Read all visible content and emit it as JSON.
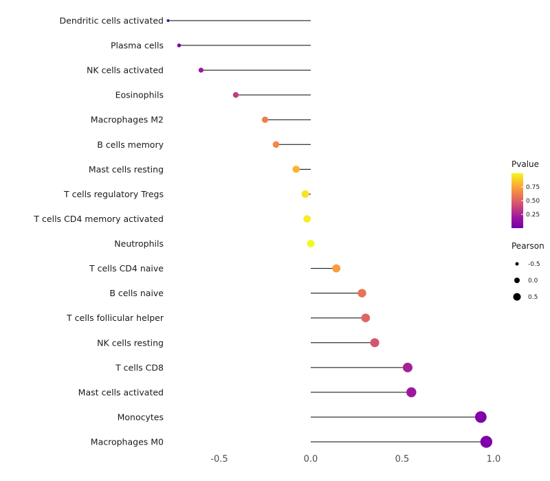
{
  "chart_data": {
    "type": "lollipop",
    "title": "",
    "xlabel": "",
    "ylabel": "",
    "xlim": [
      -0.85,
      1.05
    ],
    "x_ticks": [
      -0.5,
      0.0,
      0.5,
      1.0
    ],
    "x_tick_labels": [
      "-0.5",
      "0.0",
      "0.5",
      "1.0"
    ],
    "grid": "off",
    "legend": {
      "position": "right",
      "color_title": "Pvalue",
      "color_ticks": [
        "0.75",
        "0.50",
        "0.25"
      ],
      "color_gradient_top_to_bottom": [
        "#f0f921",
        "#fdb32f",
        "#ed7953",
        "#cc4778",
        "#9c179e",
        "#7301a8"
      ],
      "size_title": "Pearson",
      "size_ticks": [
        {
          "label": "-0.5",
          "r": 2.5
        },
        {
          "label": "0.0",
          "r": 4.0
        },
        {
          "label": "0.5",
          "r": 5.5
        }
      ]
    },
    "points": [
      {
        "label": "Dendritic cells activated",
        "pearson": -0.78,
        "pvalue": 0.03,
        "color": "#4903a0",
        "r": 2.0
      },
      {
        "label": "Plasma cells",
        "pearson": -0.72,
        "pvalue": 0.07,
        "color": "#7701a8",
        "r": 2.8
      },
      {
        "label": "NK cells activated",
        "pearson": -0.6,
        "pvalue": 0.14,
        "color": "#9c179e",
        "r": 3.6
      },
      {
        "label": "Eosinophils",
        "pearson": -0.41,
        "pvalue": 0.3,
        "color": "#c13b82",
        "r": 4.2
      },
      {
        "label": "Macrophages M2",
        "pearson": -0.25,
        "pvalue": 0.55,
        "color": "#ef7e50",
        "r": 4.6
      },
      {
        "label": "B cells memory",
        "pearson": -0.19,
        "pvalue": 0.6,
        "color": "#f48849",
        "r": 4.8
      },
      {
        "label": "Mast cells resting",
        "pearson": -0.08,
        "pvalue": 0.78,
        "color": "#fdb22f",
        "r": 5.2
      },
      {
        "label": "T cells regulatory  Tregs",
        "pearson": -0.03,
        "pvalue": 0.9,
        "color": "#f7e225",
        "r": 5.4
      },
      {
        "label": "T cells CD4 memory activated",
        "pearson": -0.02,
        "pvalue": 0.93,
        "color": "#f4ed27",
        "r": 5.4
      },
      {
        "label": "Neutrophils",
        "pearson": 0.0,
        "pvalue": 0.98,
        "color": "#f0f921",
        "r": 5.5
      },
      {
        "label": "T cells CD4 naive",
        "pearson": 0.14,
        "pvalue": 0.66,
        "color": "#fa9b3d",
        "r": 5.9
      },
      {
        "label": "B cells naive",
        "pearson": 0.28,
        "pvalue": 0.5,
        "color": "#e97257",
        "r": 6.2
      },
      {
        "label": "T cells follicular helper",
        "pearson": 0.3,
        "pvalue": 0.44,
        "color": "#e26561",
        "r": 6.3
      },
      {
        "label": "NK cells resting",
        "pearson": 0.35,
        "pvalue": 0.38,
        "color": "#d5536f",
        "r": 6.5
      },
      {
        "label": "T cells CD8",
        "pearson": 0.53,
        "pvalue": 0.17,
        "color": "#a62098",
        "r": 7.0
      },
      {
        "label": "Mast cells activated",
        "pearson": 0.55,
        "pvalue": 0.14,
        "color": "#9c179e",
        "r": 7.2
      },
      {
        "label": "Monocytes",
        "pearson": 0.93,
        "pvalue": 0.01,
        "color": "#8004a8",
        "r": 8.4
      },
      {
        "label": "Macrophages M0",
        "pearson": 0.96,
        "pvalue": 0.005,
        "color": "#7e03a8",
        "r": 8.7
      }
    ],
    "colors": {
      "stem": "#000000",
      "category_label": "#1a1a1a",
      "tick_label": "#4d4d4d",
      "background": "#ffffff",
      "size_legend_dot": "#000000"
    }
  }
}
